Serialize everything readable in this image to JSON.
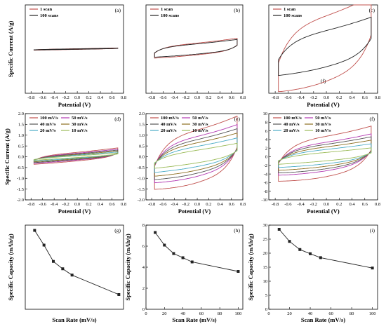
{
  "chart_data": [
    {
      "id": "a",
      "type": "cv",
      "panel_label": "(a)",
      "xlabel": "Potential (V)",
      "ylabel": "Specific Current (A/g)",
      "xlim": [
        -0.9,
        0.8
      ],
      "ylim": [
        -6,
        6
      ],
      "xticks": [
        -0.8,
        -0.6,
        -0.4,
        -0.2,
        0.0,
        0.2,
        0.4,
        0.6,
        0.8
      ],
      "xtick_labels": [
        "-0.8",
        "-0.6",
        "-0.4",
        "-0.2",
        "0.0",
        "0.2",
        "0.4",
        "0.6",
        "0.8"
      ],
      "yticks": [],
      "ytick_labels": [],
      "legend_position": "top-left",
      "series": [
        {
          "name": "1 scan",
          "color": "#c0504d",
          "v_min": -0.75,
          "v_max": 0.7,
          "i_low": -0.05,
          "i_high": 0.05,
          "slope": 0.1,
          "span": 0.15
        },
        {
          "name": "100 scans",
          "color": "#222222",
          "v_min": -0.75,
          "v_max": 0.7,
          "i_low": -0.03,
          "i_high": 0.03,
          "slope": 0.09,
          "span": 0.15
        }
      ]
    },
    {
      "id": "b",
      "type": "cv",
      "panel_label": "(b)",
      "xlabel": "",
      "ylabel": "",
      "xlim": [
        -0.9,
        0.8
      ],
      "ylim": [
        -6,
        6
      ],
      "xticks": [
        -0.8,
        -0.6,
        -0.4,
        -0.2,
        0.0,
        0.2,
        0.4,
        0.6,
        0.8
      ],
      "xtick_labels": [
        "-0.8",
        "-0.6",
        "-0.4",
        "-0.2",
        "0.0",
        "0.2",
        "0.4",
        "0.6",
        "0.8"
      ],
      "yticks": [],
      "ytick_labels": [],
      "legend_position": "top-left",
      "series": [
        {
          "name": "1 scan",
          "color": "#c0504d",
          "v_min": -0.75,
          "v_max": 0.7,
          "i_low": -0.8,
          "i_high": 0.8,
          "slope": 0.55,
          "span": 0.15
        },
        {
          "name": "100 scans",
          "color": "#222222",
          "v_min": -0.75,
          "v_max": 0.7,
          "i_low": -0.7,
          "i_high": 0.7,
          "slope": 0.5,
          "span": 0.15
        }
      ]
    },
    {
      "id": "c",
      "type": "cv",
      "panel_label": "(c)",
      "extra_label": "(f)",
      "xlabel": "Potential (V)",
      "ylabel": "",
      "xlim": [
        -0.9,
        0.8
      ],
      "ylim": [
        -5,
        5
      ],
      "xticks": [
        -0.8,
        -0.6,
        -0.4,
        -0.2,
        0.0,
        0.2,
        0.4,
        0.6,
        0.8
      ],
      "xtick_labels": [
        "-0.8",
        "-0.6",
        "-0.4",
        "-0.2",
        "0.0",
        "0.2",
        "0.4",
        "0.6",
        "0.8"
      ],
      "yticks": [],
      "ytick_labels": [],
      "legend_position": "top-left",
      "series": [
        {
          "name": "1 scan",
          "color": "#c0504d",
          "v_min": -0.75,
          "v_max": 0.7,
          "i_low": -3.8,
          "i_high": 3.8,
          "slope": 1.6,
          "span": 0.2
        },
        {
          "name": "100 scans",
          "color": "#222222",
          "v_min": -0.75,
          "v_max": 0.7,
          "i_low": -2.1,
          "i_high": 2.1,
          "slope": 1.2,
          "span": 0.2
        }
      ]
    },
    {
      "id": "d",
      "type": "cv",
      "panel_label": "(d)",
      "xlabel": "Potential (V)",
      "ylabel": "Specific Current (A/g)",
      "xlim": [
        -0.9,
        0.8
      ],
      "ylim": [
        -2.0,
        2.0
      ],
      "xticks": [
        -0.8,
        -0.6,
        -0.4,
        -0.2,
        0.0,
        0.2,
        0.4,
        0.6,
        0.8
      ],
      "xtick_labels": [
        "-0.8",
        "-0.6",
        "-0.4",
        "-0.2",
        "0.0",
        "0.2",
        "0.4",
        "0.6",
        "0.8"
      ],
      "yticks": [
        -2.0,
        -1.5,
        -1.0,
        -0.5,
        0.0,
        0.5,
        1.0,
        1.5,
        2.0
      ],
      "ytick_labels": [
        "-2.0",
        "-1.5",
        "-1.0",
        "-0.5",
        "0.0",
        "0.5",
        "1.0",
        "1.5",
        "2.0"
      ],
      "legend_position": "top-left",
      "series": [
        {
          "name": "100 mV/s",
          "color": "#c0504d",
          "v_min": -0.75,
          "v_max": 0.7,
          "i_low": -0.2,
          "i_high": 0.2,
          "slope": 0.18,
          "span": 0.15
        },
        {
          "name": "50 mV/s",
          "color": "#b23ab2",
          "v_min": -0.75,
          "v_max": 0.7,
          "i_low": -0.16,
          "i_high": 0.16,
          "slope": 0.17,
          "span": 0.15
        },
        {
          "name": "40 mV/s",
          "color": "#555555",
          "v_min": -0.75,
          "v_max": 0.7,
          "i_low": -0.13,
          "i_high": 0.13,
          "slope": 0.16,
          "span": 0.15
        },
        {
          "name": "30 mV/s",
          "color": "#8c6d1f",
          "v_min": -0.75,
          "v_max": 0.7,
          "i_low": -0.1,
          "i_high": 0.1,
          "slope": 0.15,
          "span": 0.15
        },
        {
          "name": "20 mV/s",
          "color": "#4bacc6",
          "v_min": -0.75,
          "v_max": 0.7,
          "i_low": -0.07,
          "i_high": 0.07,
          "slope": 0.14,
          "span": 0.15
        },
        {
          "name": "10 mV/s",
          "color": "#9bbb59",
          "v_min": -0.75,
          "v_max": 0.7,
          "i_low": -0.04,
          "i_high": 0.04,
          "slope": 0.13,
          "span": 0.15
        }
      ]
    },
    {
      "id": "e",
      "type": "cv",
      "panel_label": "(e)",
      "xlabel": "Potential (V)",
      "ylabel": "",
      "xlim": [
        -0.9,
        0.8
      ],
      "ylim": [
        -2.0,
        2.0
      ],
      "xticks": [
        -0.8,
        -0.6,
        -0.4,
        -0.2,
        0.0,
        0.2,
        0.4,
        0.6,
        0.8
      ],
      "xtick_labels": [
        "-0.8",
        "-0.6",
        "-0.4",
        "-0.2",
        "0.0",
        "0.2",
        "0.4",
        "0.6",
        "0.8"
      ],
      "yticks": [
        -2.0,
        -1.5,
        -1.0,
        -0.5,
        0.0,
        0.5,
        1.0,
        1.5,
        2.0
      ],
      "ytick_labels": [
        "-2.0",
        "-1.5",
        "-1.0",
        "-0.5",
        "0.0",
        "0.5",
        "1.0",
        "1.5",
        "2.0"
      ],
      "legend_position": "top-left",
      "series": [
        {
          "name": "100 mV/s",
          "color": "#c0504d",
          "v_min": -0.75,
          "v_max": 0.7,
          "i_low": -1.25,
          "i_high": 1.25,
          "slope": 0.45,
          "span": 0.2
        },
        {
          "name": "50 mV/s",
          "color": "#b23ab2",
          "v_min": -0.75,
          "v_max": 0.7,
          "i_low": -0.95,
          "i_high": 0.95,
          "slope": 0.4,
          "span": 0.2
        },
        {
          "name": "40 mV/s",
          "color": "#555555",
          "v_min": -0.75,
          "v_max": 0.7,
          "i_low": -0.8,
          "i_high": 0.8,
          "slope": 0.38,
          "span": 0.2
        },
        {
          "name": "30 mV/s",
          "color": "#8c6d1f",
          "v_min": -0.75,
          "v_max": 0.7,
          "i_low": -0.65,
          "i_high": 0.65,
          "slope": 0.35,
          "span": 0.2
        },
        {
          "name": "20 mV/s",
          "color": "#4bacc6",
          "v_min": -0.75,
          "v_max": 0.7,
          "i_low": -0.48,
          "i_high": 0.48,
          "slope": 0.32,
          "span": 0.2
        },
        {
          "name": "10 mV/s",
          "color": "#9bbb59",
          "v_min": -0.75,
          "v_max": 0.7,
          "i_low": -0.3,
          "i_high": 0.3,
          "slope": 0.28,
          "span": 0.2
        }
      ]
    },
    {
      "id": "f",
      "type": "cv",
      "panel_label": "(f)",
      "xlabel": "Potential (V)",
      "ylabel": "",
      "xlim": [
        -0.9,
        0.8
      ],
      "ylim": [
        -10,
        10
      ],
      "xticks": [
        -0.8,
        -0.6,
        -0.4,
        -0.2,
        0.0,
        0.2,
        0.4,
        0.6,
        0.8
      ],
      "xtick_labels": [
        "-0.8",
        "-0.6",
        "-0.4",
        "-0.2",
        "0.0",
        "0.2",
        "0.4",
        "0.6",
        "0.8"
      ],
      "yticks": [
        -10,
        -8,
        -6,
        -4,
        -2,
        0,
        2,
        4,
        6,
        8,
        10
      ],
      "ytick_labels": [
        "-10",
        "-8",
        "-6",
        "-4",
        "-2",
        "0",
        "2",
        "4",
        "6",
        "8",
        "10"
      ],
      "legend_position": "top-left",
      "series": [
        {
          "name": "100 mV/s",
          "color": "#c0504d",
          "v_min": -0.75,
          "v_max": 0.7,
          "i_low": -4.8,
          "i_high": 4.8,
          "slope": 1.6,
          "span": 0.2
        },
        {
          "name": "50 mV/s",
          "color": "#b23ab2",
          "v_min": -0.75,
          "v_max": 0.7,
          "i_low": -3.4,
          "i_high": 3.4,
          "slope": 1.4,
          "span": 0.2
        },
        {
          "name": "40 mV/s",
          "color": "#555555",
          "v_min": -0.75,
          "v_max": 0.7,
          "i_low": -2.9,
          "i_high": 2.9,
          "slope": 1.3,
          "span": 0.2
        },
        {
          "name": "30 mV/s",
          "color": "#8c6d1f",
          "v_min": -0.75,
          "v_max": 0.7,
          "i_low": -2.3,
          "i_high": 2.3,
          "slope": 1.2,
          "span": 0.2
        },
        {
          "name": "20 mV/s",
          "color": "#4bacc6",
          "v_min": -0.75,
          "v_max": 0.7,
          "i_low": -1.7,
          "i_high": 1.7,
          "slope": 1.05,
          "span": 0.2
        },
        {
          "name": "10 mV/s",
          "color": "#9bbb59",
          "v_min": -0.75,
          "v_max": 0.7,
          "i_low": -1.0,
          "i_high": 1.0,
          "slope": 0.9,
          "span": 0.2
        }
      ]
    },
    {
      "id": "g",
      "type": "line",
      "panel_label": "(g)",
      "xlabel": "Scan Rate (mV/s)",
      "ylabel": "Specific Capacity (mAh/g)",
      "xlim": [
        0,
        105
      ],
      "ylim": [
        0.4,
        2.0
      ],
      "xticks": [],
      "xtick_labels": [],
      "yticks": [],
      "ytick_labels": [],
      "series": [
        {
          "color": "#222222",
          "x": [
            10,
            20,
            30,
            40,
            50,
            100
          ],
          "y": [
            1.9,
            1.62,
            1.31,
            1.17,
            1.05,
            0.68
          ]
        }
      ]
    },
    {
      "id": "h",
      "type": "line",
      "panel_label": "(h)",
      "xlabel": "Scan Rate (mV/s)",
      "ylabel": "Specific Capacity (mAh/g)",
      "xlim": [
        0,
        105
      ],
      "ylim": [
        0,
        8
      ],
      "xticks": [
        0,
        20,
        40,
        60,
        80,
        100
      ],
      "xtick_labels": [
        "0",
        "20",
        "40",
        "60",
        "80",
        "100"
      ],
      "yticks": [
        0,
        2,
        4,
        6,
        8
      ],
      "ytick_labels": [
        "0",
        "2",
        "4",
        "6",
        "8"
      ],
      "series": [
        {
          "color": "#222222",
          "x": [
            10,
            20,
            30,
            40,
            50,
            100
          ],
          "y": [
            7.3,
            6.1,
            5.3,
            4.9,
            4.5,
            3.6
          ]
        }
      ]
    },
    {
      "id": "i",
      "type": "line",
      "panel_label": "(i)",
      "xlabel": "Scan Rate (mV/s)",
      "ylabel": "Specific Capacity (mAh/g)",
      "xlim": [
        0,
        105
      ],
      "ylim": [
        0,
        30
      ],
      "xticks": [
        0,
        20,
        40,
        60,
        80,
        100
      ],
      "xtick_labels": [
        "0",
        "20",
        "40",
        "60",
        "80",
        "100"
      ],
      "yticks": [
        0,
        5,
        10,
        15,
        20,
        25,
        30
      ],
      "ytick_labels": [
        "0",
        "5",
        "10",
        "15",
        "20",
        "25",
        "30"
      ],
      "series": [
        {
          "color": "#222222",
          "x": [
            10,
            20,
            30,
            40,
            50,
            100
          ],
          "y": [
            28.5,
            24.2,
            21.3,
            19.8,
            18.4,
            14.7
          ]
        }
      ]
    }
  ]
}
